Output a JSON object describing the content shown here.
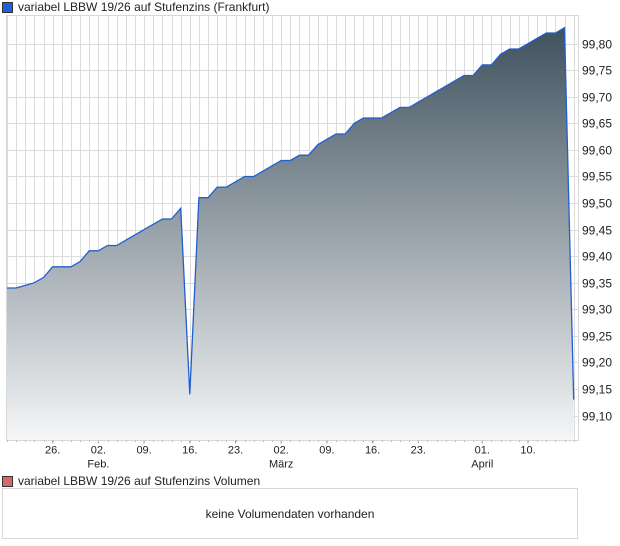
{
  "legend": {
    "label": "variabel LBBW 19/26 auf Stufenzins (Frankfurt)",
    "color": "#1f5fcf"
  },
  "volume": {
    "label": "variabel LBBW 19/26 auf Stufenzins Volumen",
    "color": "#d36a6a",
    "empty_text": "keine Volumendaten vorhanden"
  },
  "chart_data": {
    "type": "area",
    "title": "variabel LBBW 19/26 auf Stufenzins (Frankfurt)",
    "xlabel": "",
    "ylabel": "",
    "ylim": [
      99.053,
      99.853
    ],
    "grid": true,
    "line_color": "#1f5fcf",
    "fill_top": "#3f515e",
    "fill_bottom": "#f5f6f7",
    "y_ticks": [
      99.1,
      99.15,
      99.2,
      99.25,
      99.3,
      99.35,
      99.4,
      99.45,
      99.5,
      99.55,
      99.6,
      99.65,
      99.7,
      99.75,
      99.8
    ],
    "y_tick_labels": [
      "99,10",
      "99,15",
      "99,20",
      "99,25",
      "99,30",
      "99,35",
      "99,40",
      "99,45",
      "99,50",
      "99,55",
      "99,60",
      "99,65",
      "99,70",
      "99,75",
      "99,80"
    ],
    "x_ticks": [
      {
        "index": 5,
        "day": "26.",
        "month": ""
      },
      {
        "index": 10,
        "day": "02.",
        "month": "Feb."
      },
      {
        "index": 15,
        "day": "09.",
        "month": ""
      },
      {
        "index": 20,
        "day": "16.",
        "month": ""
      },
      {
        "index": 25,
        "day": "23.",
        "month": ""
      },
      {
        "index": 30,
        "day": "02.",
        "month": "März"
      },
      {
        "index": 35,
        "day": "09.",
        "month": ""
      },
      {
        "index": 40,
        "day": "16.",
        "month": ""
      },
      {
        "index": 45,
        "day": "23.",
        "month": ""
      },
      {
        "index": 52,
        "day": "01.",
        "month": "April"
      },
      {
        "index": 57,
        "day": "10.",
        "month": ""
      }
    ],
    "values": [
      99.34,
      99.34,
      99.345,
      99.35,
      99.36,
      99.38,
      99.38,
      99.38,
      99.39,
      99.41,
      99.41,
      99.42,
      99.42,
      99.43,
      99.44,
      99.45,
      99.46,
      99.47,
      99.47,
      99.49,
      99.14,
      99.51,
      99.51,
      99.53,
      99.53,
      99.54,
      99.55,
      99.55,
      99.56,
      99.57,
      99.58,
      99.58,
      99.59,
      99.59,
      99.61,
      99.62,
      99.63,
      99.63,
      99.65,
      99.66,
      99.66,
      99.66,
      99.67,
      99.68,
      99.68,
      99.69,
      99.7,
      99.71,
      99.72,
      99.73,
      99.74,
      99.74,
      99.76,
      99.76,
      99.78,
      99.79,
      99.79,
      99.8,
      99.81,
      99.82,
      99.82,
      99.83,
      99.13
    ]
  }
}
